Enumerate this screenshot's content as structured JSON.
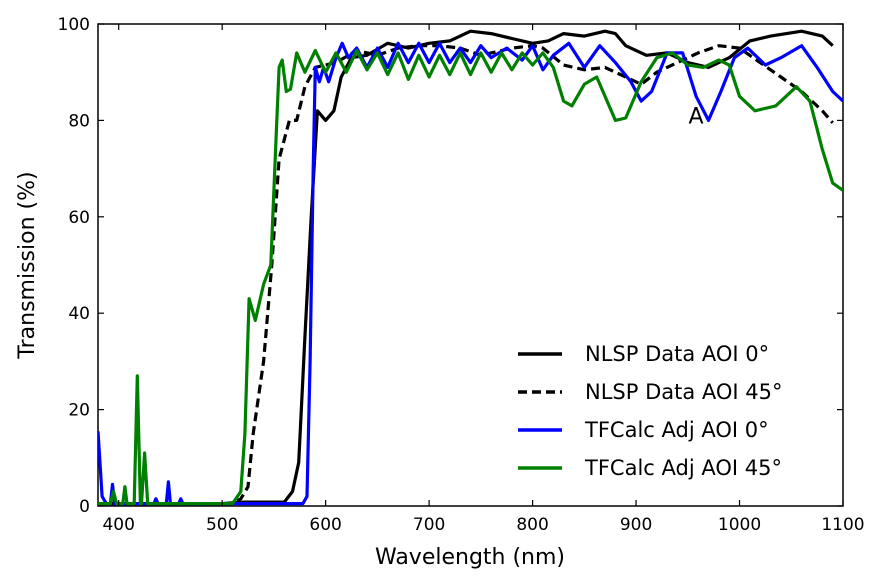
{
  "chart_data": {
    "type": "line",
    "title": "",
    "xlabel": "Wavelength (nm)",
    "ylabel": "Transmission (%)",
    "xlim": [
      380,
      1100
    ],
    "ylim": [
      0,
      100
    ],
    "xticks": [
      400,
      500,
      600,
      700,
      800,
      900,
      1000,
      1100
    ],
    "yticks": [
      0,
      20,
      40,
      60,
      80,
      100
    ],
    "grid": false,
    "legend_position": "lower-right",
    "annotations": [
      {
        "text": "A",
        "x": 958,
        "y": 81
      }
    ],
    "series": [
      {
        "name": "NLSP Data AOI 0°",
        "color": "#000000",
        "dash": "solid",
        "points": [
          [
            380,
            0.5
          ],
          [
            450,
            0.5
          ],
          [
            500,
            0.5
          ],
          [
            520,
            0.8
          ],
          [
            560,
            0.8
          ],
          [
            568,
            3
          ],
          [
            574,
            9
          ],
          [
            580,
            35
          ],
          [
            586,
            60
          ],
          [
            592,
            82
          ],
          [
            600,
            80
          ],
          [
            608,
            82
          ],
          [
            615,
            89
          ],
          [
            625,
            93
          ],
          [
            640,
            93.5
          ],
          [
            660,
            96
          ],
          [
            680,
            95
          ],
          [
            700,
            96
          ],
          [
            720,
            96.5
          ],
          [
            740,
            98.5
          ],
          [
            760,
            98
          ],
          [
            780,
            97
          ],
          [
            800,
            96
          ],
          [
            815,
            96.5
          ],
          [
            830,
            98
          ],
          [
            850,
            97.5
          ],
          [
            870,
            98.5
          ],
          [
            880,
            98
          ],
          [
            890,
            95.5
          ],
          [
            910,
            93.5
          ],
          [
            930,
            94
          ],
          [
            950,
            92
          ],
          [
            970,
            91
          ],
          [
            990,
            93
          ],
          [
            1010,
            96.5
          ],
          [
            1030,
            97.5
          ],
          [
            1060,
            98.5
          ],
          [
            1080,
            97.5
          ],
          [
            1090,
            95.5
          ]
        ]
      },
      {
        "name": "NLSP Data AOI 45°",
        "color": "#000000",
        "dash": "dashed",
        "points": [
          [
            380,
            0.5
          ],
          [
            510,
            0.5
          ],
          [
            518,
            1.5
          ],
          [
            525,
            4
          ],
          [
            530,
            15
          ],
          [
            540,
            30
          ],
          [
            548,
            50
          ],
          [
            555,
            72
          ],
          [
            565,
            80
          ],
          [
            572,
            80
          ],
          [
            580,
            87
          ],
          [
            590,
            91
          ],
          [
            610,
            92
          ],
          [
            630,
            94.5
          ],
          [
            650,
            93.5
          ],
          [
            670,
            95
          ],
          [
            690,
            95.5
          ],
          [
            710,
            95.5
          ],
          [
            730,
            95
          ],
          [
            750,
            93.5
          ],
          [
            780,
            95
          ],
          [
            800,
            95.5
          ],
          [
            810,
            95
          ],
          [
            830,
            91.5
          ],
          [
            850,
            90.5
          ],
          [
            870,
            91
          ],
          [
            890,
            89
          ],
          [
            905,
            87.5
          ],
          [
            920,
            90
          ],
          [
            940,
            92
          ],
          [
            960,
            94
          ],
          [
            980,
            95.5
          ],
          [
            1000,
            95
          ],
          [
            1020,
            92
          ],
          [
            1040,
            89
          ],
          [
            1060,
            86
          ],
          [
            1080,
            82
          ],
          [
            1090,
            79.5
          ]
        ]
      },
      {
        "name": "TFCalc Adj AOI 0°",
        "color": "#0000ff",
        "dash": "solid",
        "points": [
          [
            380,
            15.5
          ],
          [
            384,
            2
          ],
          [
            388,
            0.5
          ],
          [
            392,
            0.5
          ],
          [
            394,
            4.5
          ],
          [
            396,
            0.5
          ],
          [
            420,
            0.5
          ],
          [
            434,
            0.5
          ],
          [
            436,
            1.5
          ],
          [
            438,
            0.5
          ],
          [
            446,
            0.5
          ],
          [
            448,
            5
          ],
          [
            450,
            0.5
          ],
          [
            458,
            0.5
          ],
          [
            460,
            1.5
          ],
          [
            462,
            0.5
          ],
          [
            560,
            0.5
          ],
          [
            578,
            0.5
          ],
          [
            582,
            2
          ],
          [
            585,
            30
          ],
          [
            588,
            70
          ],
          [
            590,
            91
          ],
          [
            594,
            88
          ],
          [
            598,
            91
          ],
          [
            603,
            88
          ],
          [
            610,
            93
          ],
          [
            616,
            96
          ],
          [
            622,
            93
          ],
          [
            630,
            95
          ],
          [
            640,
            91
          ],
          [
            650,
            95
          ],
          [
            660,
            91
          ],
          [
            670,
            96
          ],
          [
            680,
            92
          ],
          [
            690,
            96
          ],
          [
            700,
            92
          ],
          [
            710,
            96
          ],
          [
            720,
            92
          ],
          [
            730,
            95
          ],
          [
            740,
            92
          ],
          [
            750,
            95.5
          ],
          [
            760,
            93
          ],
          [
            775,
            95
          ],
          [
            790,
            92.5
          ],
          [
            800,
            95.5
          ],
          [
            810,
            90.5
          ],
          [
            820,
            93.5
          ],
          [
            835,
            96
          ],
          [
            850,
            91
          ],
          [
            865,
            95.5
          ],
          [
            880,
            92
          ],
          [
            895,
            88
          ],
          [
            905,
            84
          ],
          [
            915,
            86
          ],
          [
            930,
            94
          ],
          [
            945,
            94
          ],
          [
            958,
            85
          ],
          [
            970,
            80
          ],
          [
            982,
            86
          ],
          [
            995,
            93
          ],
          [
            1008,
            95
          ],
          [
            1025,
            91.5
          ],
          [
            1040,
            93
          ],
          [
            1060,
            95.5
          ],
          [
            1075,
            91
          ],
          [
            1090,
            86
          ],
          [
            1100,
            84
          ]
        ]
      },
      {
        "name": "TFCalc Adj AOI 45°",
        "color": "#008000",
        "dash": "solid",
        "points": [
          [
            380,
            0.5
          ],
          [
            392,
            0.5
          ],
          [
            395,
            3
          ],
          [
            398,
            0.5
          ],
          [
            404,
            0.5
          ],
          [
            406,
            4
          ],
          [
            408,
            0.5
          ],
          [
            415,
            0.5
          ],
          [
            418,
            27
          ],
          [
            421,
            0.5
          ],
          [
            422,
            0.5
          ],
          [
            425,
            11
          ],
          [
            428,
            0.5
          ],
          [
            500,
            0.5
          ],
          [
            510,
            0.5
          ],
          [
            518,
            3
          ],
          [
            522,
            15
          ],
          [
            526,
            43
          ],
          [
            532,
            38.5
          ],
          [
            540,
            46
          ],
          [
            547,
            50
          ],
          [
            552,
            76
          ],
          [
            555,
            91
          ],
          [
            558,
            92.5
          ],
          [
            562,
            86
          ],
          [
            566,
            86.5
          ],
          [
            572,
            94
          ],
          [
            580,
            90
          ],
          [
            590,
            94.5
          ],
          [
            600,
            90
          ],
          [
            610,
            94
          ],
          [
            620,
            90
          ],
          [
            630,
            94.5
          ],
          [
            640,
            90.5
          ],
          [
            650,
            94
          ],
          [
            660,
            89.5
          ],
          [
            670,
            94
          ],
          [
            680,
            88.5
          ],
          [
            690,
            93.5
          ],
          [
            700,
            89
          ],
          [
            710,
            93.5
          ],
          [
            720,
            89.5
          ],
          [
            730,
            94
          ],
          [
            740,
            89.5
          ],
          [
            750,
            94
          ],
          [
            760,
            90
          ],
          [
            770,
            94
          ],
          [
            780,
            90.5
          ],
          [
            790,
            94
          ],
          [
            800,
            91.5
          ],
          [
            810,
            94
          ],
          [
            820,
            91
          ],
          [
            830,
            84
          ],
          [
            838,
            83
          ],
          [
            850,
            87.5
          ],
          [
            862,
            89
          ],
          [
            880,
            80
          ],
          [
            890,
            80.5
          ],
          [
            905,
            88
          ],
          [
            920,
            93
          ],
          [
            935,
            94
          ],
          [
            950,
            91.5
          ],
          [
            965,
            91
          ],
          [
            980,
            92.5
          ],
          [
            990,
            91.5
          ],
          [
            1000,
            85
          ],
          [
            1015,
            82
          ],
          [
            1035,
            83
          ],
          [
            1055,
            87
          ],
          [
            1068,
            84
          ],
          [
            1080,
            74
          ],
          [
            1090,
            67
          ],
          [
            1100,
            65.5
          ]
        ]
      }
    ]
  }
}
